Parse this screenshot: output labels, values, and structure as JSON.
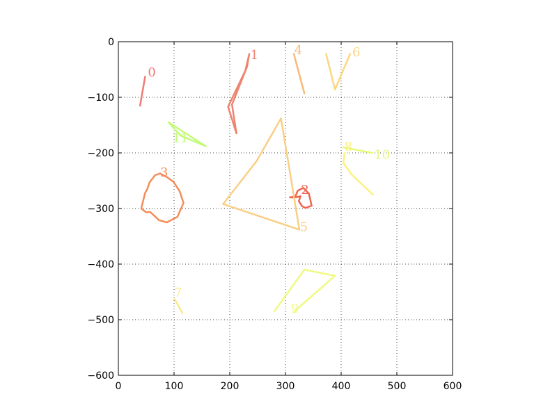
{
  "chart_data": {
    "type": "line",
    "title": "",
    "xlabel": "",
    "ylabel": "",
    "xlim": [
      0,
      600
    ],
    "ylim": [
      -600,
      0
    ],
    "x_ticks": [
      0,
      100,
      200,
      300,
      400,
      500,
      600
    ],
    "y_ticks": [
      0,
      -100,
      -200,
      -300,
      -400,
      -500,
      -600
    ],
    "x_tick_labels": [
      "0",
      "100",
      "200",
      "300",
      "400",
      "500",
      "600"
    ],
    "y_tick_labels": [
      "0",
      "−100",
      "−200",
      "−300",
      "−400",
      "−500",
      "−600"
    ],
    "grid": true,
    "grid_style": "dotted",
    "series": [
      {
        "name": "0",
        "color": "#ef7a73",
        "label_at": [
          53,
          -55
        ],
        "points": [
          [
            39,
            -115
          ],
          [
            48,
            -63
          ]
        ]
      },
      {
        "name": "1",
        "color": "#ee8470",
        "label_at": [
          237,
          -24
        ],
        "points": [
          [
            235,
            -22
          ],
          [
            231,
            -45
          ],
          [
            204,
            -113
          ],
          [
            212,
            -165
          ],
          [
            197,
            -117
          ],
          [
            228,
            -52
          ],
          [
            235,
            -22
          ]
        ]
      },
      {
        "name": "2",
        "color": "#f26450",
        "label_at": [
          328,
          -266
        ],
        "points": [
          [
            308,
            -280
          ],
          [
            318,
            -278
          ],
          [
            322,
            -268
          ],
          [
            332,
            -263
          ],
          [
            342,
            -273
          ],
          [
            347,
            -295
          ],
          [
            336,
            -299
          ],
          [
            330,
            -296
          ],
          [
            324,
            -287
          ],
          [
            327,
            -278
          ],
          [
            318,
            -280
          ],
          [
            308,
            -280
          ]
        ]
      },
      {
        "name": "3",
        "color": "#f58d5a",
        "label_at": [
          75,
          -235
        ],
        "points": [
          [
            75,
            -237
          ],
          [
            66,
            -240
          ],
          [
            56,
            -253
          ],
          [
            52,
            -265
          ],
          [
            48,
            -272
          ],
          [
            44,
            -288
          ],
          [
            41,
            -300
          ],
          [
            50,
            -307
          ],
          [
            57,
            -306
          ],
          [
            73,
            -321
          ],
          [
            87,
            -325
          ],
          [
            106,
            -315
          ],
          [
            117,
            -290
          ],
          [
            110,
            -269
          ],
          [
            99,
            -252
          ],
          [
            88,
            -244
          ],
          [
            75,
            -237
          ]
        ]
      },
      {
        "name": "4",
        "color": "#f8b979",
        "label_at": [
          316,
          -15
        ],
        "points": [
          [
            315,
            -22
          ],
          [
            334,
            -93
          ]
        ]
      },
      {
        "name": "5",
        "color": "#f9cf85",
        "label_at": [
          326,
          -333
        ],
        "points": [
          [
            292,
            -138
          ],
          [
            248,
            -215
          ],
          [
            188,
            -292
          ],
          [
            325,
            -338
          ],
          [
            292,
            -138
          ]
        ]
      },
      {
        "name": "6",
        "color": "#fdd67f",
        "label_at": [
          420,
          -19
        ],
        "points": [
          [
            373,
            -22
          ],
          [
            389,
            -86
          ],
          [
            416,
            -22
          ]
        ]
      },
      {
        "name": "7",
        "color": "#fbe889",
        "label_at": [
          100,
          -451
        ],
        "points": [
          [
            101,
            -463
          ],
          [
            115,
            -488
          ]
        ]
      },
      {
        "name": "8",
        "color": "#fbf17c",
        "label_at": [
          406,
          -189
        ],
        "points": [
          [
            406,
            -200
          ],
          [
            404,
            -218
          ],
          [
            418,
            -238
          ],
          [
            457,
            -275
          ]
        ]
      },
      {
        "name": "9",
        "color": "#f0fa80",
        "label_at": [
          310,
          -480
        ],
        "points": [
          [
            280,
            -485
          ],
          [
            334,
            -410
          ],
          [
            389,
            -421
          ],
          [
            316,
            -485
          ]
        ]
      },
      {
        "name": "10",
        "color": "#e4fa76",
        "label_at": [
          459,
          -203
        ],
        "points": [
          [
            404,
            -190
          ],
          [
            456,
            -200
          ]
        ]
      },
      {
        "name": "11",
        "color": "#c3fa7a",
        "label_at": [
          97,
          -173
        ],
        "points": [
          [
            90,
            -145
          ],
          [
            157,
            -188
          ],
          [
            112,
            -169
          ],
          [
            90,
            -145
          ]
        ]
      }
    ]
  }
}
